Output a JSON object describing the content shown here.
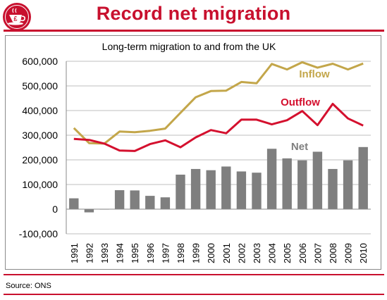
{
  "header": {
    "title": "Record net migration"
  },
  "footer": {
    "source": "Source: ONS"
  },
  "logo": {
    "icon": "teacup-pound-logo-icon",
    "symbol": "£"
  },
  "colors": {
    "accent": "#c8102e",
    "inflow": "#c3a64a",
    "outflow": "#d4102e",
    "net": "#7f7f7f"
  },
  "chart_data": {
    "type": "bar+line",
    "title": "Long-term migration to and from the UK",
    "xlabel": "",
    "ylabel": "",
    "categories": [
      "1991",
      "1992",
      "1993",
      "1994",
      "1995",
      "1996",
      "1997",
      "1998",
      "1999",
      "2000",
      "2001",
      "2002",
      "2003",
      "2004",
      "2005",
      "2006",
      "2007",
      "2008",
      "2009",
      "2010"
    ],
    "ylim": [
      -100000,
      600000
    ],
    "yticks": [
      -100000,
      0,
      100000,
      200000,
      300000,
      400000,
      500000,
      600000
    ],
    "ytick_labels": [
      "-100,000",
      "0",
      "100,000",
      "200,000",
      "300,000",
      "400,000",
      "500,000",
      "600,000"
    ],
    "grid": true,
    "series": [
      {
        "name": "Inflow",
        "type": "line",
        "color": "#c3a64a",
        "values": [
          329000,
          268000,
          266000,
          315000,
          312000,
          318000,
          327000,
          391000,
          454000,
          479000,
          481000,
          516000,
          511000,
          589000,
          567000,
          596000,
          574000,
          590000,
          567000,
          591000
        ]
      },
      {
        "name": "Outflow",
        "type": "line",
        "color": "#d4102e",
        "values": [
          285000,
          281000,
          266000,
          238000,
          236000,
          264000,
          279000,
          251000,
          291000,
          321000,
          308000,
          363000,
          363000,
          344000,
          361000,
          398000,
          341000,
          427000,
          368000,
          339000
        ]
      },
      {
        "name": "Net",
        "type": "bar",
        "color": "#7f7f7f",
        "values": [
          44000,
          -13000,
          -1000,
          77000,
          76000,
          54000,
          48000,
          140000,
          163000,
          158000,
          173000,
          153000,
          148000,
          245000,
          206000,
          198000,
          233000,
          163000,
          198000,
          252000
        ]
      }
    ]
  }
}
